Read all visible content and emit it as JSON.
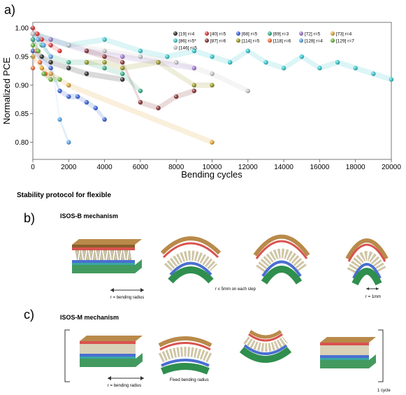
{
  "panel_a_label": "a)",
  "panel_b_label": "b)",
  "panel_c_label": "c)",
  "protocol_title": "Stability protocol for flexible",
  "isos_b": {
    "title": "ISOS-B mechanism",
    "left_caption": "r = bending radius",
    "mid_caption": "r ≤ 5mm on each step",
    "right_caption": "r = 1mm"
  },
  "isos_m": {
    "title": "ISOS-M mechanism",
    "left_caption": "r = bending radius",
    "mid_caption": "Fixed bending radius",
    "cycle_caption": "1 cycle"
  },
  "colors": {
    "stack_top": "#b07a3a",
    "stack_red": "#d9534f",
    "stack_blue": "#4a6fd1",
    "stack_teal": "#3aa7a3",
    "stack_green": "#2f8f4e"
  },
  "chart_data": {
    "type": "scatter",
    "xlabel": "Bending cycles",
    "ylabel": "Normalized PCE",
    "xlim": [
      0,
      20000
    ],
    "ylim": [
      0.77,
      1.01
    ],
    "xticks": [
      0,
      2000,
      4000,
      6000,
      8000,
      10000,
      12000,
      14000,
      16000,
      18000,
      20000
    ],
    "yticks": [
      0.8,
      0.85,
      0.9,
      0.95,
      1.0
    ],
    "legend_position": "top-right",
    "series": [
      {
        "name": "[19] r=4",
        "color": "#333333",
        "x": [
          0,
          500,
          1000,
          2000,
          3000,
          5000
        ],
        "y": [
          0.98,
          0.95,
          0.94,
          0.93,
          0.92,
          0.91
        ]
      },
      {
        "name": "[40] r=5",
        "color": "#e63b3b",
        "x": [
          0,
          250,
          500,
          1000,
          1500
        ],
        "y": [
          1.0,
          0.99,
          0.98,
          0.97,
          0.96
        ]
      },
      {
        "name": "[68] r=5",
        "color": "#3d68d8",
        "x": [
          0,
          1000,
          1500,
          2000,
          2500,
          3000,
          3500,
          4000
        ],
        "y": [
          0.96,
          0.93,
          0.89,
          0.88,
          0.88,
          0.87,
          0.86,
          0.84
        ]
      },
      {
        "name": "[69] r=3",
        "color": "#3cb08a",
        "x": [
          0,
          500,
          1000,
          2000,
          3000,
          4000,
          5000,
          6000
        ],
        "y": [
          0.98,
          0.97,
          0.95,
          0.94,
          0.94,
          0.93,
          0.92,
          0.89
        ]
      },
      {
        "name": "[72] r=5",
        "color": "#a07ad0",
        "x": [
          0,
          1000,
          2000,
          3000,
          5000,
          7000,
          9000
        ],
        "y": [
          0.99,
          0.98,
          0.97,
          0.96,
          0.95,
          0.94,
          0.93
        ]
      },
      {
        "name": "[73] r=4",
        "color": "#e0a53a",
        "x": [
          0,
          500,
          1000,
          2000,
          10000
        ],
        "y": [
          0.95,
          0.93,
          0.92,
          0.9,
          0.8
        ]
      },
      {
        "name": "[86] r=5*",
        "color": "#3fc6cc",
        "x": [
          0,
          2000,
          4000,
          6000,
          7500,
          9000,
          10000,
          11000,
          12000,
          13000,
          14000,
          15000,
          16000,
          17000,
          18000,
          19000,
          20000
        ],
        "y": [
          0.99,
          0.97,
          0.98,
          0.96,
          0.95,
          0.96,
          0.95,
          0.94,
          0.96,
          0.94,
          0.93,
          0.95,
          0.93,
          0.94,
          0.93,
          0.92,
          0.91
        ]
      },
      {
        "name": "[87] r=6",
        "color": "#8a3a3a",
        "x": [
          3000,
          4000,
          5000,
          6000,
          7000,
          8000,
          9000
        ],
        "y": [
          0.96,
          0.95,
          0.94,
          0.87,
          0.86,
          0.88,
          0.89
        ]
      },
      {
        "name": "[114] r=5",
        "color": "#9a9a2a",
        "x": [
          3000,
          4000,
          5000,
          7000,
          9000,
          10000
        ],
        "y": [
          0.94,
          0.94,
          0.93,
          0.94,
          0.9,
          0.9
        ]
      },
      {
        "name": "[118] r=6",
        "color": "#f07040",
        "x": [
          0,
          200,
          400,
          700,
          1000
        ],
        "y": [
          0.93,
          0.96,
          0.94,
          0.92,
          0.91
        ]
      },
      {
        "name": "[128] r=4",
        "color": "#5aa8e8",
        "x": [
          0,
          300,
          600,
          1000,
          1500,
          2000
        ],
        "y": [
          0.99,
          0.98,
          0.97,
          0.95,
          0.84,
          0.8
        ]
      },
      {
        "name": "[129] r=7",
        "color": "#6aba3a",
        "x": [
          0,
          300,
          600,
          1000,
          1500
        ],
        "y": [
          0.97,
          0.96,
          0.92,
          0.91,
          0.91
        ]
      },
      {
        "name": "[146] r=5",
        "color": "#c8c8c8",
        "x": [
          0,
          2000,
          4000,
          6000,
          8000,
          10000,
          12000
        ],
        "y": [
          0.99,
          0.97,
          0.96,
          0.95,
          0.94,
          0.92,
          0.89
        ]
      }
    ]
  }
}
